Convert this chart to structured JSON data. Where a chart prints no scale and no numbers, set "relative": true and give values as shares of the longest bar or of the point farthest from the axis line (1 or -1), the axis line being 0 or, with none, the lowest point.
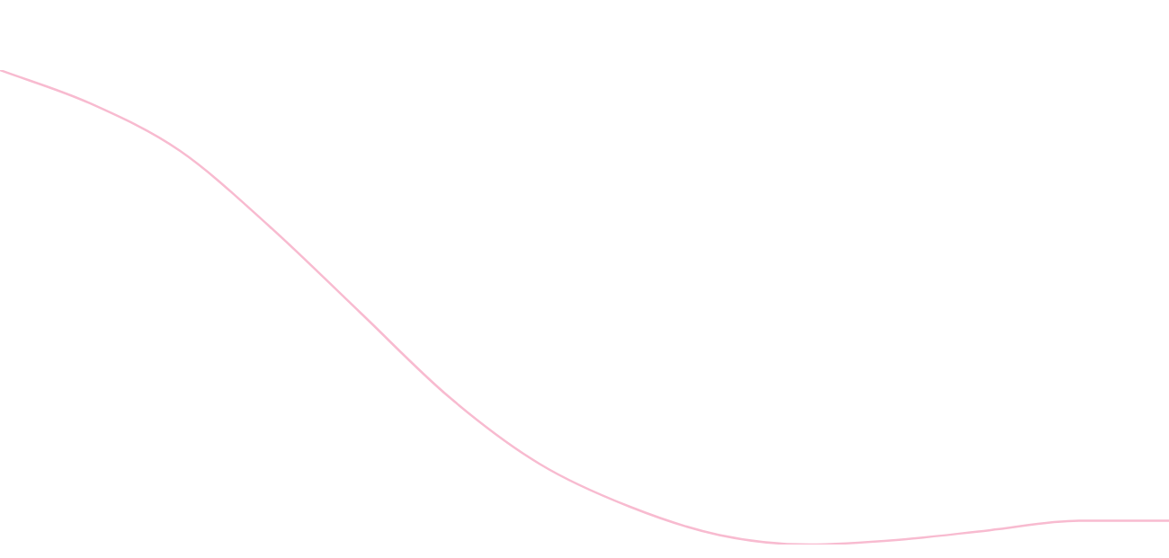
{
  "chart_data": {
    "type": "line",
    "relative": true,
    "categories": [
      null,
      null,
      null,
      null,
      null,
      null,
      null,
      null,
      null,
      null,
      null,
      null,
      null,
      null
    ],
    "series": [
      {
        "color": "#f8bbd0",
        "values": [
          1,
          0.93,
          0.83,
          0.67,
          0.49,
          0.31,
          0.17,
          0.08,
          0.02,
          0,
          0.01,
          0.03,
          0.05,
          0.05
        ]
      }
    ],
    "marker": "none",
    "legend": false,
    "tick_labels": false
  }
}
